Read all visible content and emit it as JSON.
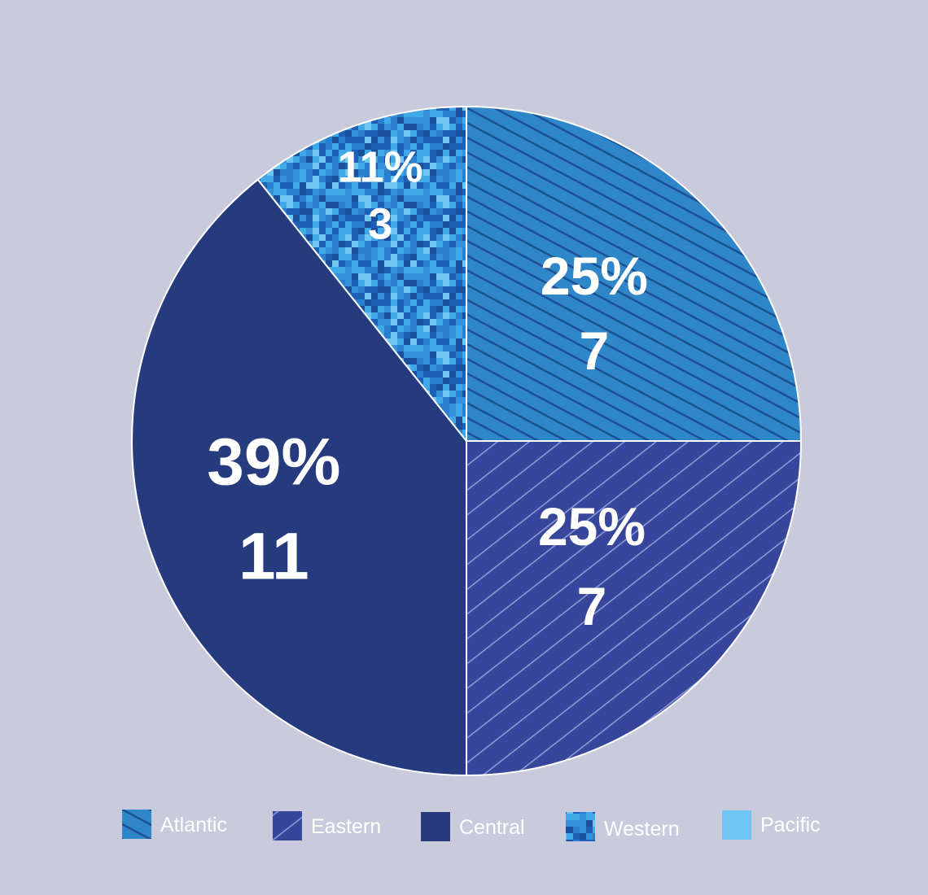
{
  "chart_data": {
    "type": "pie",
    "title": "",
    "series": [
      {
        "name": "",
        "slices": [
          {
            "label": "Atlantic",
            "value": 7,
            "percent_label": "25%",
            "value_label": "7",
            "color": "#2f86c8",
            "pattern": "hatch-dark"
          },
          {
            "label": "Eastern",
            "value": 7,
            "percent_label": "25%",
            "value_label": "7",
            "color": "#37469a",
            "pattern": "hatch-light"
          },
          {
            "label": "Central",
            "value": 11,
            "percent_label": "39%",
            "value_label": "11",
            "color": "#263a7e",
            "pattern": "solid"
          },
          {
            "label": "Western",
            "value": 3,
            "percent_label": "11%",
            "value_label": "3",
            "color": "#1e60b5",
            "pattern": "digital-camo"
          },
          {
            "label": "Pacific",
            "value": 0.0,
            "percent_label": "",
            "value_label": "",
            "color": "#6ec6f0",
            "pattern": "solid"
          }
        ]
      }
    ],
    "start_angle": "12 o'clock",
    "direction": "clockwise",
    "legend_position": "bottom"
  },
  "legend": {
    "items": [
      {
        "label": "Atlantic"
      },
      {
        "label": "Eastern"
      },
      {
        "label": "Central"
      },
      {
        "label": "Western"
      },
      {
        "label": "Pacific"
      }
    ]
  }
}
